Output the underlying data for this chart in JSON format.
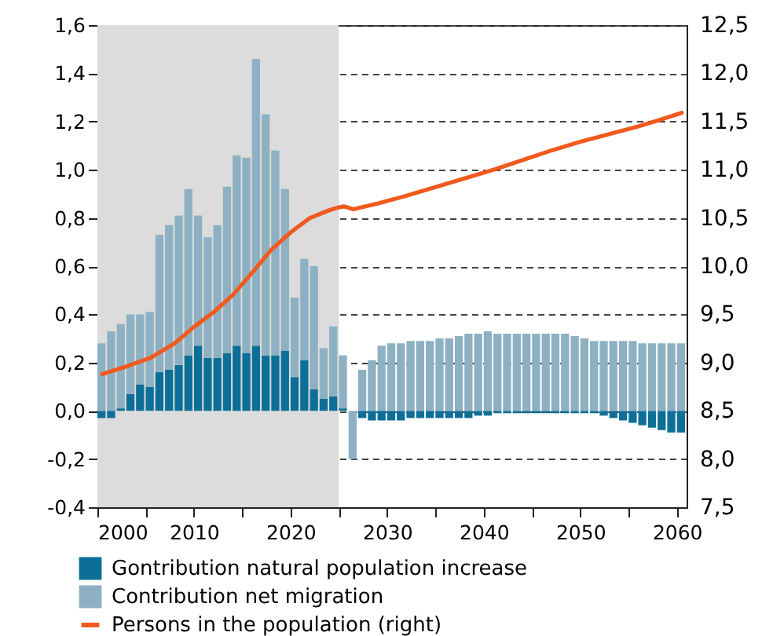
{
  "chart_data": {
    "type": "bar",
    "legend": "bottom",
    "grid": "y",
    "stacked": true,
    "x": [
      2000,
      2001,
      2002,
      2003,
      2004,
      2005,
      2006,
      2007,
      2008,
      2009,
      2010,
      2011,
      2012,
      2013,
      2014,
      2015,
      2016,
      2017,
      2018,
      2019,
      2020,
      2021,
      2022,
      2023,
      2024,
      2025,
      2026,
      2027,
      2028,
      2029,
      2030,
      2031,
      2032,
      2033,
      2034,
      2035,
      2036,
      2037,
      2038,
      2039,
      2040,
      2041,
      2042,
      2043,
      2044,
      2045,
      2046,
      2047,
      2048,
      2049,
      2050,
      2051,
      2052,
      2053,
      2054,
      2055,
      2056,
      2057,
      2058,
      2059,
      2060
    ],
    "xlim": [
      2000,
      2061
    ],
    "xticks": [
      2000,
      {
        "value": 2005,
        "label": null
      },
      2010,
      {
        "value": 2015,
        "label": null
      },
      2020,
      {
        "value": 2025,
        "label": null
      },
      2030,
      {
        "value": 2035,
        "label": null
      },
      2040,
      {
        "value": 2045,
        "label": null
      },
      2050,
      {
        "value": 2055,
        "label": null
      },
      2060
    ],
    "ylim": [
      -0.4,
      1.6
    ],
    "yticks": [
      {
        "value": -0.4,
        "label": "-0,4"
      },
      {
        "value": -0.2,
        "label": "-0,2"
      },
      {
        "value": 0,
        "label": "0,0"
      },
      {
        "value": 0.2,
        "label": "0,2"
      },
      {
        "value": 0.4,
        "label": "0,4"
      },
      {
        "value": 0.6,
        "label": "0,6"
      },
      {
        "value": 0.8,
        "label": "0,8"
      },
      {
        "value": 1.0,
        "label": "1,0"
      },
      {
        "value": 1.2,
        "label": "1,2"
      },
      {
        "value": 1.4,
        "label": "1,4"
      },
      {
        "value": 1.6,
        "label": "1,6"
      }
    ],
    "y2lim": [
      7.5,
      12.5
    ],
    "y2ticks": [
      {
        "value": 7.5,
        "label": "7,5"
      },
      {
        "value": 8.0,
        "label": "8,0"
      },
      {
        "value": 8.5,
        "label": "8,5"
      },
      {
        "value": 9.0,
        "label": "9,0"
      },
      {
        "value": 9.5,
        "label": "9,5"
      },
      {
        "value": 10.0,
        "label": "10,0"
      },
      {
        "value": 10.5,
        "label": "10,5"
      },
      {
        "value": 11.0,
        "label": "11,0"
      },
      {
        "value": 11.5,
        "label": "11,5"
      },
      {
        "value": 12.0,
        "label": "12,0"
      },
      {
        "value": 12.5,
        "label": "12,5"
      }
    ],
    "bands": [
      {
        "axis": "x",
        "from": 2000,
        "to": 2025,
        "color": "#dcdcdc"
      }
    ],
    "series": [
      {
        "name": "Gontribution natural population increase",
        "color": "#0c6f97",
        "values": [
          -0.03,
          -0.03,
          0.01,
          0.07,
          0.11,
          0.1,
          0.16,
          0.17,
          0.19,
          0.23,
          0.27,
          0.22,
          0.22,
          0.24,
          0.27,
          0.24,
          0.27,
          0.23,
          0.23,
          0.25,
          0.14,
          0.21,
          0.09,
          0.05,
          0.06,
          0.01,
          0.0,
          -0.03,
          -0.04,
          -0.04,
          -0.04,
          -0.04,
          -0.03,
          -0.03,
          -0.03,
          -0.03,
          -0.03,
          -0.03,
          -0.03,
          -0.02,
          -0.02,
          -0.01,
          -0.01,
          -0.01,
          -0.01,
          -0.01,
          -0.01,
          -0.01,
          -0.01,
          -0.01,
          -0.01,
          -0.01,
          -0.02,
          -0.03,
          -0.04,
          -0.05,
          -0.06,
          -0.07,
          -0.08,
          -0.09,
          -0.09
        ]
      },
      {
        "name": "Contribution net migration",
        "color": "#8db1c3",
        "values": [
          0.28,
          0.33,
          0.35,
          0.33,
          0.29,
          0.31,
          0.57,
          0.6,
          0.62,
          0.69,
          0.54,
          0.5,
          0.55,
          0.69,
          0.79,
          0.81,
          1.19,
          1.0,
          0.85,
          0.67,
          0.33,
          0.42,
          0.51,
          0.21,
          0.29,
          0.22,
          -0.2,
          0.17,
          0.21,
          0.27,
          0.28,
          0.28,
          0.29,
          0.29,
          0.29,
          0.3,
          0.3,
          0.31,
          0.32,
          0.32,
          0.33,
          0.32,
          0.32,
          0.32,
          0.32,
          0.32,
          0.32,
          0.32,
          0.32,
          0.31,
          0.3,
          0.29,
          0.29,
          0.29,
          0.29,
          0.29,
          0.28,
          0.28,
          0.28,
          0.28,
          0.28
        ]
      },
      {
        "name": "Persons in the population (right)",
        "type": "line",
        "axis": "y2",
        "color": "#f05a1e",
        "x": [
          2000.5,
          2003,
          2005.5,
          2008,
          2010,
          2012,
          2014,
          2016,
          2018,
          2020,
          2022,
          2024,
          2025,
          2025.5,
          2026.5,
          2029,
          2032,
          2035,
          2038,
          2041,
          2044,
          2047,
          2050,
          2053,
          2056,
          2058,
          2060.5
        ],
        "values": [
          8.88,
          8.96,
          9.05,
          9.2,
          9.37,
          9.52,
          9.7,
          9.93,
          10.17,
          10.35,
          10.5,
          10.58,
          10.61,
          10.62,
          10.59,
          10.65,
          10.73,
          10.82,
          10.91,
          11.0,
          11.1,
          11.2,
          11.29,
          11.37,
          11.45,
          11.51,
          11.59
        ]
      }
    ]
  }
}
